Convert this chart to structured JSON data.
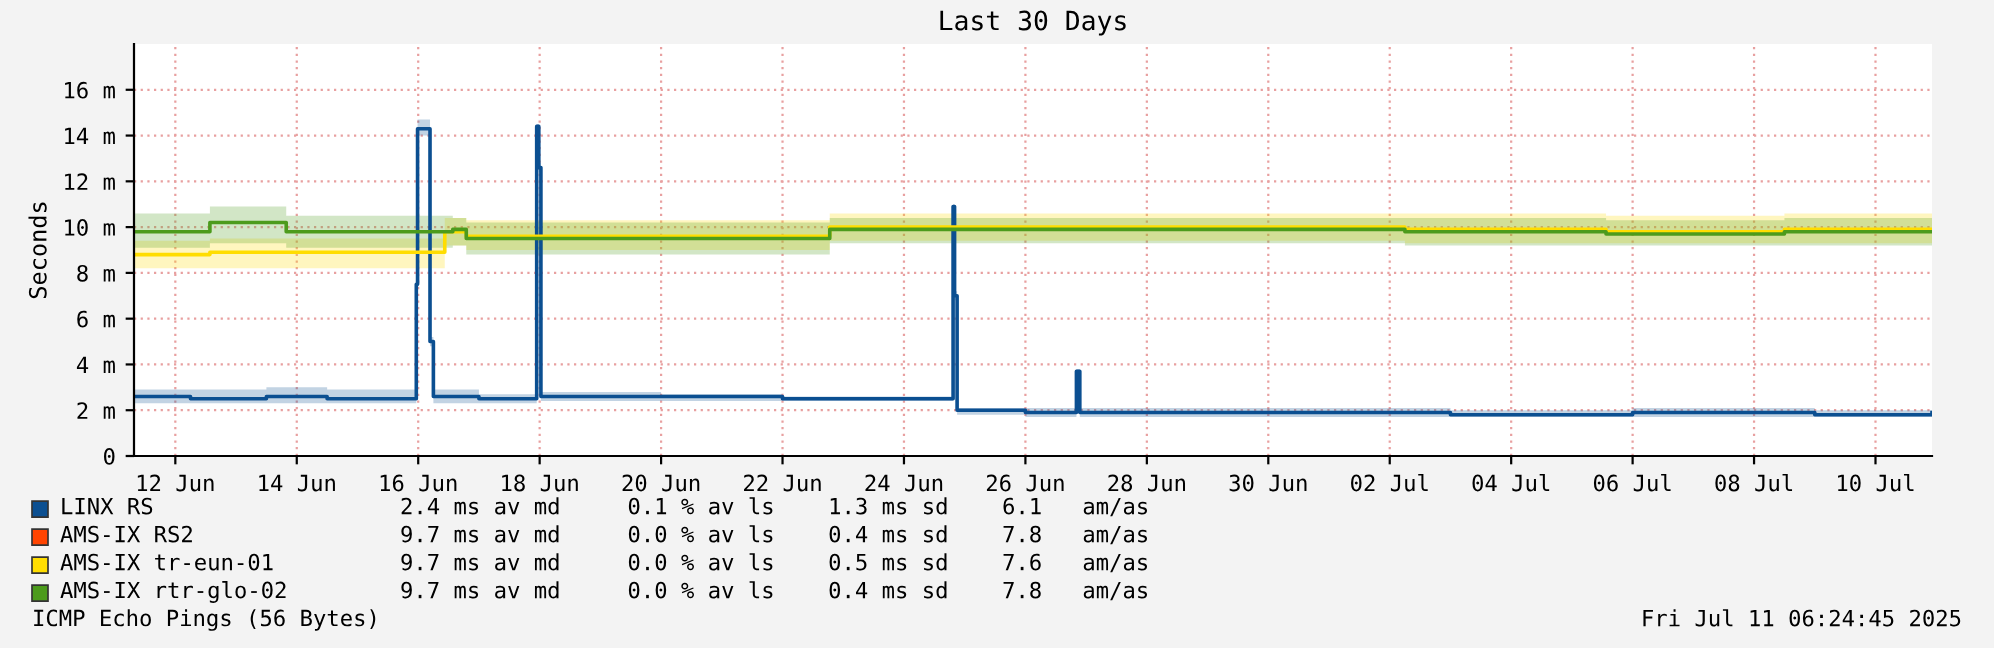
{
  "chart_data": {
    "type": "step",
    "title": "Last 30 Days",
    "ylabel": "Seconds",
    "xlim": [
      "2025-06-11T07:40",
      "2025-07-10T22:20"
    ],
    "xticks": [
      {
        "value": "2025-06-12",
        "label": "12 Jun"
      },
      {
        "value": "2025-06-14",
        "label": "14 Jun"
      },
      {
        "value": "2025-06-16",
        "label": "16 Jun"
      },
      {
        "value": "2025-06-18",
        "label": "18 Jun"
      },
      {
        "value": "2025-06-20",
        "label": "20 Jun"
      },
      {
        "value": "2025-06-22",
        "label": "22 Jun"
      },
      {
        "value": "2025-06-24",
        "label": "24 Jun"
      },
      {
        "value": "2025-06-26",
        "label": "26 Jun"
      },
      {
        "value": "2025-06-28",
        "label": "28 Jun"
      },
      {
        "value": "2025-06-30",
        "label": "30 Jun"
      },
      {
        "value": "2025-07-02",
        "label": "02 Jul"
      },
      {
        "value": "2025-07-04",
        "label": "04 Jul"
      },
      {
        "value": "2025-07-06",
        "label": "06 Jul"
      },
      {
        "value": "2025-07-08",
        "label": "08 Jul"
      },
      {
        "value": "2025-07-10",
        "label": "10 Jul"
      }
    ],
    "ylim": [
      0,
      18
    ],
    "yticks": [
      0,
      {
        "value": 2,
        "label": "2 m"
      },
      {
        "value": 4,
        "label": "4 m"
      },
      {
        "value": 6,
        "label": "6 m"
      },
      {
        "value": 8,
        "label": "8 m"
      },
      {
        "value": 10,
        "label": "10 m"
      },
      {
        "value": 12,
        "label": "12 m"
      },
      {
        "value": 14,
        "label": "14 m"
      },
      {
        "value": 16,
        "label": "16 m"
      }
    ],
    "grid": true,
    "legend": "bottom",
    "line_style": "solid",
    "marker": "none",
    "series": [
      {
        "name": "LINX RS",
        "color": "#0b4f91",
        "x": [
          "2025-06-11T07:40",
          "2025-06-12T06:00",
          "2025-06-13T12:00",
          "2025-06-14T12:00",
          "2025-06-15T23:15",
          "2025-06-15T23:45",
          "2025-06-16T04:40",
          "2025-06-16T06:00",
          "2025-06-17T00:00",
          "2025-06-17T22:50",
          "2025-06-17T23:40",
          "2025-06-18T00:30",
          "2025-06-20T00:00",
          "2025-06-22T00:00",
          "2025-06-24T19:25",
          "2025-06-24T20:00",
          "2025-06-24T21:00",
          "2025-06-26T00:00",
          "2025-06-26T20:10",
          "2025-06-26T21:30",
          "2025-06-29T00:00",
          "2025-07-03T00:00",
          "2025-07-06T00:00",
          "2025-07-09T00:00",
          "2025-07-10T22:20"
        ],
        "values": [
          2.6,
          2.5,
          2.6,
          2.5,
          7.5,
          14.3,
          5.0,
          2.6,
          2.5,
          14.4,
          12.6,
          2.6,
          2.6,
          2.5,
          10.9,
          7.0,
          2.0,
          1.9,
          3.7,
          1.9,
          1.9,
          1.8,
          1.9,
          1.8,
          1.9
        ],
        "lower": [
          2.3,
          2.3,
          2.3,
          2.3,
          7.2,
          14.0,
          4.8,
          2.3,
          2.3,
          14.0,
          12.4,
          2.4,
          2.4,
          2.4,
          10.7,
          6.8,
          1.8,
          1.7,
          3.5,
          1.7,
          1.7,
          1.7,
          1.7,
          1.7,
          1.7
        ],
        "upper": [
          2.9,
          2.9,
          3.0,
          2.9,
          7.8,
          14.7,
          5.2,
          2.9,
          2.7,
          14.5,
          12.8,
          2.8,
          2.7,
          2.6,
          11.0,
          7.2,
          2.1,
          2.1,
          3.8,
          2.1,
          2.1,
          2.0,
          2.1,
          2.0,
          2.1
        ]
      },
      {
        "name": "AMS-IX RS2",
        "color": "#ff4400"
      },
      {
        "name": "AMS-IX tr-eun-01",
        "color": "#ffdd00",
        "x": [
          "2025-06-11T07:40",
          "2025-06-12T13:40",
          "2025-06-16T10:30",
          "2025-06-16T19:00",
          "2025-06-22T18:40",
          "2025-07-02T06:00",
          "2025-07-05T13:30",
          "2025-07-08T12:00",
          "2025-07-10T22:20"
        ],
        "values": [
          8.8,
          8.9,
          9.8,
          9.6,
          10.0,
          9.9,
          9.8,
          9.9,
          9.9
        ],
        "lower": [
          8.2,
          8.2,
          9.2,
          9.0,
          9.4,
          9.3,
          9.3,
          9.3,
          9.3
        ],
        "upper": [
          9.4,
          9.5,
          10.4,
          10.3,
          10.6,
          10.6,
          10.5,
          10.6,
          10.6
        ]
      },
      {
        "name": "AMS-IX rtr-glo-02",
        "color": "#4c9b1c",
        "x": [
          "2025-06-11T07:40",
          "2025-06-12T13:40",
          "2025-06-13T19:50",
          "2025-06-16T13:40",
          "2025-06-16T19:00",
          "2025-06-22T18:40",
          "2025-07-02T06:00",
          "2025-07-05T13:30",
          "2025-07-08T12:00",
          "2025-07-10T22:20"
        ],
        "values": [
          9.8,
          10.2,
          9.8,
          9.9,
          9.5,
          9.9,
          9.8,
          9.7,
          9.8,
          9.8
        ],
        "lower": [
          9.1,
          9.3,
          9.1,
          9.2,
          8.8,
          9.3,
          9.2,
          9.2,
          9.2,
          9.2
        ],
        "upper": [
          10.6,
          10.9,
          10.5,
          10.4,
          10.2,
          10.4,
          10.4,
          10.3,
          10.4,
          10.4
        ]
      }
    ],
    "annotations": [
      "2.4 ms av md     0.1 % av ls    1.3 ms sd    6.1   am/as",
      "9.7 ms av md     0.0 % av ls    0.4 ms sd    7.8   am/as",
      "9.7 ms av md     0.0 % av ls    0.5 ms sd    7.6   am/as",
      "9.7 ms av md     0.0 % av ls    0.4 ms sd    7.8   am/as",
      "ICMP Echo Pings (56 Bytes)",
      "Fri Jul 11 06:24:45 2025"
    ]
  }
}
